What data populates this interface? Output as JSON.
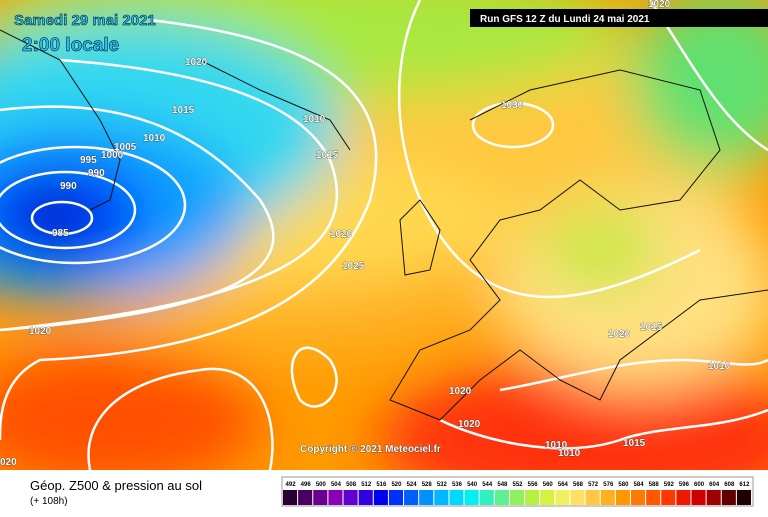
{
  "header": {
    "date": "Samedi 29 mai 2021",
    "time": "2:00 locale",
    "run": "Run GFS 12 Z du Lundi 24 mai 2021"
  },
  "isobar_labels": [
    "1020",
    "1015",
    "1010",
    "1005",
    "1000",
    "995",
    "990",
    "990",
    "985",
    "1010",
    "1015",
    "1020",
    "1025",
    "1030",
    "1020",
    "1020",
    "1020",
    "1020",
    "1015",
    "1010",
    "1010",
    "1010",
    "1015",
    "1020",
    "020"
  ],
  "copyright": "Copyright © 2021 Meteociel.fr",
  "footer": {
    "title": "Géop. Z500 & pression au sol",
    "subtitle": "(+ 108h)"
  },
  "legend": {
    "labels": [
      "492",
      "496",
      "500",
      "504",
      "508",
      "512",
      "516",
      "520",
      "524",
      "528",
      "532",
      "536",
      "540",
      "544",
      "548",
      "552",
      "556",
      "560",
      "564",
      "568",
      "572",
      "576",
      "580",
      "584",
      "588",
      "592",
      "596",
      "600",
      "604",
      "608",
      "612"
    ],
    "colors": [
      "#2a0030",
      "#4a0060",
      "#6a0090",
      "#8800b8",
      "#6000d0",
      "#3000e0",
      "#0000f0",
      "#0030ff",
      "#0060ff",
      "#0090ff",
      "#00b8ff",
      "#00d8ff",
      "#00f0f0",
      "#30f0c0",
      "#60f090",
      "#90f060",
      "#b8f040",
      "#d8f040",
      "#f0f060",
      "#ffe060",
      "#ffc840",
      "#ffb020",
      "#ff9800",
      "#ff7800",
      "#ff5800",
      "#ff3800",
      "#f01800",
      "#d00000",
      "#a00000",
      "#600000",
      "#200000"
    ]
  }
}
